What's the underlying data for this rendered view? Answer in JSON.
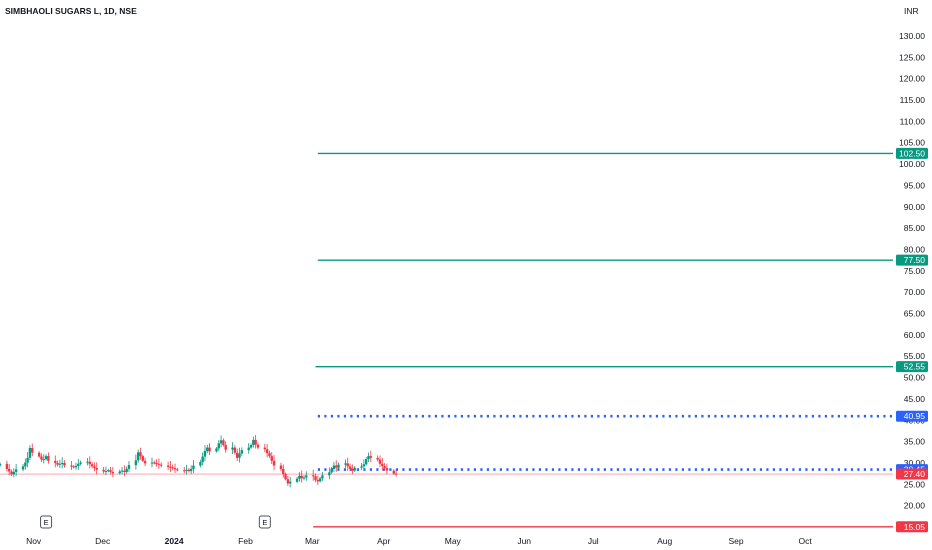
{
  "header": {
    "symbol_title": "SIMBHAOLI SUGARS L, 1D, NSE",
    "currency": "INR"
  },
  "colors": {
    "up": "#089981",
    "down": "#f23645",
    "target": "#089981",
    "dotted": "#2962ff",
    "stop": "#f23645",
    "axis_text": "#131722"
  },
  "chart_data": {
    "type": "candlestick",
    "y_axis": {
      "ticks": [
        "20.00",
        "25.00",
        "30.00",
        "35.00",
        "40.00",
        "45.00",
        "50.00",
        "55.00",
        "60.00",
        "65.00",
        "70.00",
        "75.00",
        "80.00",
        "85.00",
        "90.00",
        "95.00",
        "100.00",
        "105.00",
        "110.00",
        "115.00",
        "120.00",
        "125.00",
        "130.00"
      ],
      "ylim": [
        16,
        133
      ]
    },
    "x_axis": {
      "labels": [
        "Nov",
        "Dec",
        "2024",
        "Feb",
        "Mar",
        "Apr",
        "May",
        "Jun",
        "Jul",
        "Aug",
        "Sep",
        "Oct"
      ],
      "bold_label": "2024"
    },
    "horizontal_levels": [
      {
        "label": "102.50",
        "value": 102.5,
        "style": "solid",
        "color": "#089981",
        "from_date": "2024-03-06"
      },
      {
        "label": "77.50",
        "value": 77.5,
        "style": "solid",
        "color": "#089981",
        "from_date": "2024-03-06"
      },
      {
        "label": "52.55",
        "value": 52.55,
        "style": "solid",
        "color": "#089981",
        "from_date": "2024-03-05"
      },
      {
        "label": "40.95",
        "value": 40.95,
        "style": "dotted",
        "color": "#2962ff",
        "from_date": "2024-03-06"
      },
      {
        "label": "28.45",
        "value": 28.45,
        "style": "dotted",
        "color": "#2962ff",
        "from_date": "2024-03-06"
      },
      {
        "label": "27.40",
        "value": 27.4,
        "style": "thin",
        "color": "#f23645",
        "from_date": "2023-10-20"
      },
      {
        "label": "15.05",
        "value": 15.05,
        "style": "solid",
        "color": "#f23645",
        "from_date": "2024-03-04"
      }
    ],
    "earnings_markers": [
      {
        "label": "E",
        "date": "2023-11-09"
      },
      {
        "label": "E",
        "date": "2024-02-12"
      }
    ],
    "start_date": "2023-10-20",
    "closes": [
      29.8,
      28.6,
      28.0,
      27.3,
      27.9,
      28.5,
      29.2,
      30.1,
      31.2,
      33.5,
      32.4,
      31.5,
      30.8,
      30.9,
      31.6,
      30.5,
      30.0,
      29.6,
      29.8,
      30.0,
      29.4,
      29.2,
      29.0,
      29.3,
      29.8,
      30.1,
      30.3,
      29.7,
      29.2,
      28.8,
      28.4,
      28.0,
      28.1,
      28.3,
      27.9,
      27.6,
      28.0,
      28.2,
      27.9,
      28.6,
      29.5,
      30.6,
      32.5,
      31.6,
      30.5,
      29.9,
      30.1,
      30.0,
      29.8,
      29.6,
      29.4,
      29.1,
      29.0,
      28.8,
      28.5,
      28.3,
      28.2,
      28.4,
      28.1,
      28.6,
      29.4,
      30.2,
      31.5,
      32.8,
      33.6,
      32.7,
      33.4,
      34.6,
      35.3,
      34.2,
      33.1,
      33.6,
      32.4,
      31.2,
      32.2,
      33.0,
      33.6,
      34.2,
      35.4,
      34.3,
      33.6,
      33.2,
      32.3,
      31.6,
      30.5,
      29.4,
      28.6,
      27.4,
      26.2,
      25.2,
      25.6,
      26.3,
      27.0,
      26.4,
      26.6,
      27.1,
      26.9,
      26.0,
      25.7,
      26.4,
      27.1,
      27.8,
      28.6,
      29.4,
      28.9,
      29.6,
      29.9,
      29.2,
      28.6,
      28.2,
      28.9,
      29.2,
      29.7,
      30.9,
      31.6,
      31.2,
      30.8,
      29.8,
      29.3,
      28.8,
      28.2,
      27.5,
      27.4
    ]
  }
}
